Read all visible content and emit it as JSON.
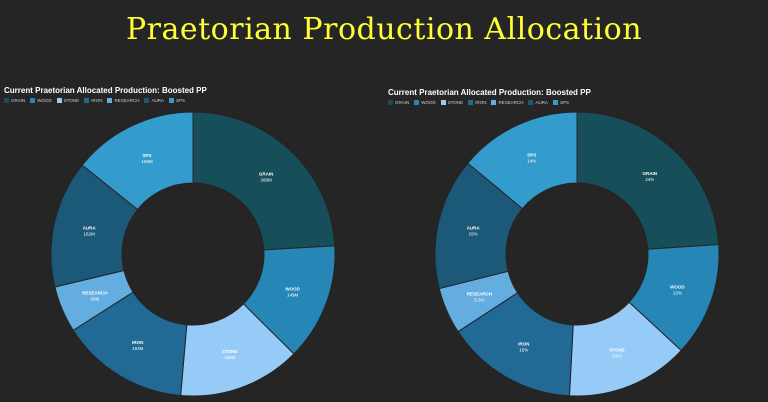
{
  "page_title": "Praetorian Production Allocation",
  "chart_data": [
    {
      "type": "pie",
      "title": "Current Praetorian Allocated Production: Boosted PP",
      "legend": [
        "GRAIN",
        "WOOD",
        "STONE",
        "IRON",
        "RESEARCH",
        "AURA",
        "SPS"
      ],
      "legend_position": "top-left",
      "categories": [
        "GRAIN",
        "WOOD",
        "STONE",
        "IRON",
        "RESEARCH",
        "AURA",
        "SPS"
      ],
      "values": [
        269,
        149,
        156,
        163,
        59,
        162,
        159
      ],
      "labels": [
        "269M",
        "149M",
        "156M",
        "163M",
        "59M",
        "162M",
        "159M"
      ],
      "colors": [
        "#164e5a",
        "#2687b7",
        "#97cbf7",
        "#216a96",
        "#63ade0",
        "#1c5878",
        "#349ccc"
      ]
    },
    {
      "type": "pie",
      "title": "Current Praetorian Allocated Production: Boosted PP",
      "legend": [
        "GRAIN",
        "WOOD",
        "STONE",
        "IRON",
        "RESEARCH",
        "AURA",
        "SPS"
      ],
      "legend_position": "top-left",
      "categories": [
        "GRAIN",
        "WOOD",
        "STONE",
        "IRON",
        "RESEARCH",
        "AURA",
        "SPS"
      ],
      "values": [
        24,
        13,
        14,
        15,
        5.3,
        15,
        14
      ],
      "labels": [
        "24%",
        "13%",
        "14%",
        "15%",
        "5.3%",
        "15%",
        "14%"
      ],
      "colors": [
        "#164e5a",
        "#2687b7",
        "#97cbf7",
        "#216a96",
        "#63ade0",
        "#1c5878",
        "#349ccc"
      ]
    }
  ]
}
